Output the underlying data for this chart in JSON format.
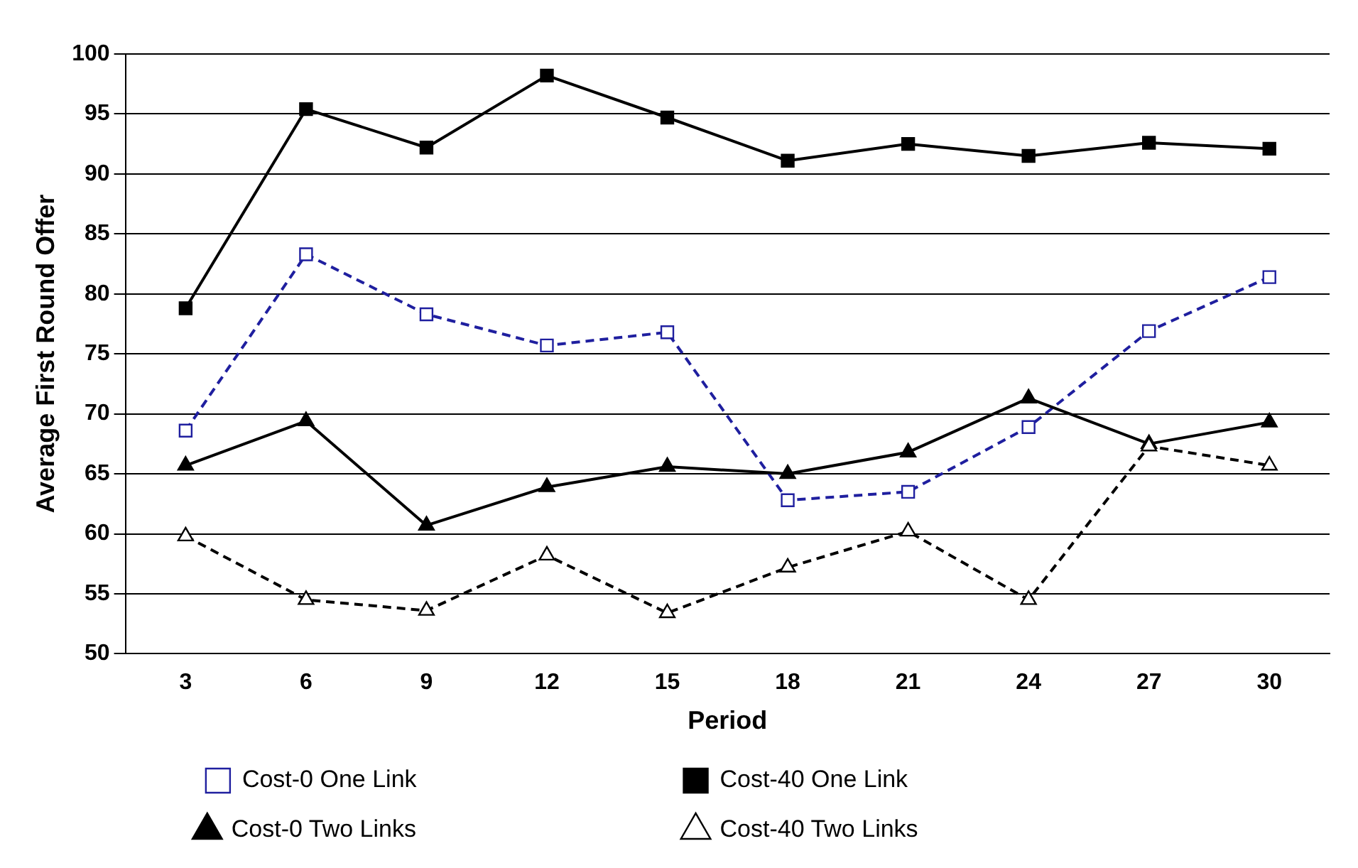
{
  "chart_data": {
    "type": "line",
    "xlabel": "Period",
    "ylabel": "Average First Round Offer",
    "categories": [
      "3",
      "6",
      "9",
      "12",
      "15",
      "18",
      "21",
      "24",
      "27",
      "30"
    ],
    "ylim": [
      50,
      100
    ],
    "yticks": [
      50,
      55,
      60,
      65,
      70,
      75,
      80,
      85,
      90,
      95,
      100
    ],
    "grid": "y",
    "legend": "bottom",
    "series": [
      {
        "name": "Cost-0 One Link",
        "color": "#1f1f9f",
        "marker": "square",
        "line_style": "dashed",
        "values": [
          68.6,
          83.3,
          78.3,
          75.7,
          76.8,
          62.8,
          63.5,
          68.9,
          76.9,
          81.4
        ]
      },
      {
        "name": "Cost-40 One Link",
        "color": "#000000",
        "marker": "square",
        "line_style": "solid",
        "values": [
          78.8,
          95.4,
          92.2,
          98.2,
          94.7,
          91.1,
          92.5,
          91.5,
          92.6,
          92.1
        ]
      },
      {
        "name": "Cost-0 Two Links",
        "color": "#000000",
        "marker": "triangle",
        "line_style": "solid",
        "values": [
          65.7,
          69.4,
          60.7,
          63.9,
          65.6,
          65.0,
          66.8,
          71.3,
          67.5,
          69.3
        ]
      },
      {
        "name": "Cost-40 Two Links",
        "color": "#000000",
        "marker": "triangle",
        "line_style": "dashed",
        "values": [
          59.8,
          54.5,
          53.6,
          58.2,
          53.4,
          57.2,
          60.2,
          54.5,
          67.3,
          65.7
        ]
      }
    ]
  }
}
